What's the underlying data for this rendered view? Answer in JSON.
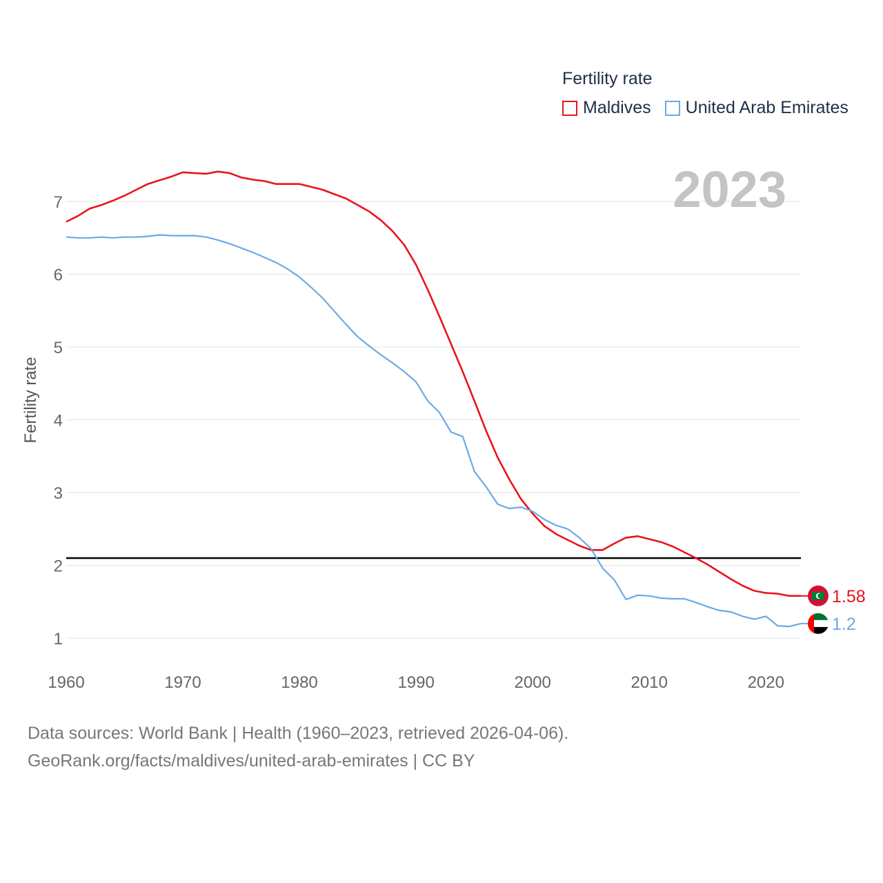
{
  "legend": {
    "title": "Fertility rate",
    "items": [
      {
        "label": "Maldives",
        "color": "#e8141c"
      },
      {
        "label": "United Arab Emirates",
        "color": "#6aaae4"
      }
    ]
  },
  "footer": {
    "line1": "Data sources: World Bank | Health (1960–2023, retrieved 2026-04-06).",
    "line2": "GeoRank.org/facts/maldives/united-arab-emirates | CC BY"
  },
  "chart_data": {
    "type": "line",
    "title": "Fertility rate",
    "year_label": "2023",
    "ylabel": "Fertility rate",
    "xlabel": "",
    "xlim": [
      1960,
      2023
    ],
    "ylim": [
      0.4,
      7.9
    ],
    "x_ticks": [
      1960,
      1970,
      1980,
      1990,
      2000,
      2010,
      2020
    ],
    "y_ticks": [
      1,
      2,
      3,
      4,
      5,
      6,
      7
    ],
    "reference_line": {
      "y": 2.1,
      "color": "#000000"
    },
    "x": [
      1960,
      1961,
      1962,
      1963,
      1964,
      1965,
      1966,
      1967,
      1968,
      1969,
      1970,
      1971,
      1972,
      1973,
      1974,
      1975,
      1976,
      1977,
      1978,
      1979,
      1980,
      1981,
      1982,
      1983,
      1984,
      1985,
      1986,
      1987,
      1988,
      1989,
      1990,
      1991,
      1992,
      1993,
      1994,
      1995,
      1996,
      1997,
      1998,
      1999,
      2000,
      2001,
      2002,
      2003,
      2004,
      2005,
      2006,
      2007,
      2008,
      2009,
      2010,
      2011,
      2012,
      2013,
      2014,
      2015,
      2016,
      2017,
      2018,
      2019,
      2020,
      2021,
      2022,
      2023
    ],
    "series": [
      {
        "name": "Maldives",
        "color": "#e8141c",
        "end_label": "1.58",
        "values": [
          6.72,
          6.8,
          6.9,
          6.95,
          7.01,
          7.08,
          7.16,
          7.24,
          7.29,
          7.34,
          7.4,
          7.39,
          7.38,
          7.41,
          7.39,
          7.33,
          7.3,
          7.28,
          7.24,
          7.24,
          7.24,
          7.2,
          7.16,
          7.1,
          7.04,
          6.95,
          6.86,
          6.74,
          6.59,
          6.4,
          6.13,
          5.79,
          5.42,
          5.04,
          4.66,
          4.26,
          3.85,
          3.48,
          3.18,
          2.91,
          2.71,
          2.54,
          2.43,
          2.35,
          2.27,
          2.21,
          2.21,
          2.3,
          2.38,
          2.4,
          2.36,
          2.32,
          2.26,
          2.18,
          2.1,
          2.01,
          1.91,
          1.81,
          1.72,
          1.65,
          1.62,
          1.61,
          1.58,
          1.58
        ]
      },
      {
        "name": "United Arab Emirates",
        "color": "#6aaae4",
        "end_label": "1.2",
        "values": [
          6.51,
          6.5,
          6.5,
          6.51,
          6.5,
          6.51,
          6.51,
          6.52,
          6.54,
          6.53,
          6.53,
          6.53,
          6.51,
          6.47,
          6.42,
          6.36,
          6.3,
          6.23,
          6.16,
          6.07,
          5.96,
          5.82,
          5.67,
          5.49,
          5.31,
          5.14,
          5.01,
          4.89,
          4.78,
          4.66,
          4.52,
          4.26,
          4.1,
          3.83,
          3.77,
          3.29,
          3.08,
          2.84,
          2.78,
          2.8,
          2.74,
          2.63,
          2.55,
          2.5,
          2.38,
          2.23,
          1.96,
          1.8,
          1.53,
          1.59,
          1.58,
          1.55,
          1.54,
          1.54,
          1.49,
          1.43,
          1.38,
          1.36,
          1.3,
          1.26,
          1.3,
          1.17,
          1.16,
          1.2
        ]
      }
    ]
  }
}
